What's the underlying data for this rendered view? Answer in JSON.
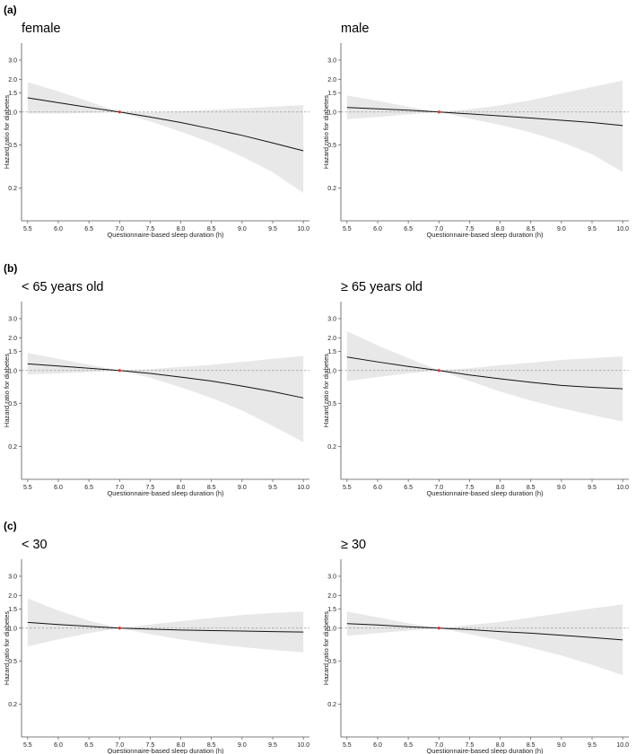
{
  "colors": {
    "band": "#e8e8e8",
    "line": "#111111",
    "ref": "#9a9a9a",
    "point": "#e03030",
    "axis": "#555555"
  },
  "chart_data": {
    "type": "line",
    "x_ticks": [
      "5.5",
      "6.0",
      "6.5",
      "7.0",
      "7.5",
      "8.0",
      "8.5",
      "9.0",
      "9.5",
      "10.0"
    ],
    "y_ticks": [
      {
        "value": 0.2,
        "label": "0.2"
      },
      {
        "value": 0.5,
        "label": "0.5"
      },
      {
        "value": 1.0,
        "label": "1.0"
      },
      {
        "value": 1.5,
        "label": "1.5"
      },
      {
        "value": 2.0,
        "label": "2.0"
      },
      {
        "value": 3.0,
        "label": "3.0"
      }
    ],
    "xlim": [
      5.4,
      10.1
    ],
    "ylim": [
      0.1,
      4.3
    ],
    "y_scale": "log",
    "reference_y": 1.0,
    "reference_x": 7.0,
    "xlabel": "Questionnaire-based sleep duration (h)",
    "ylabel": "Hazard ratio for diabetes",
    "groups": [
      {
        "label": "(a)",
        "panels": [
          {
            "title": "female",
            "x": [
              5.5,
              6.0,
              6.5,
              7.0,
              7.5,
              8.0,
              8.5,
              9.0,
              9.5,
              10.0
            ],
            "hr": [
              1.35,
              1.22,
              1.1,
              1.0,
              0.9,
              0.8,
              0.7,
              0.61,
              0.52,
              0.44
            ],
            "lower": [
              0.97,
              0.97,
              0.98,
              1.0,
              0.82,
              0.66,
              0.52,
              0.39,
              0.28,
              0.18
            ],
            "upper": [
              1.88,
              1.55,
              1.25,
              1.0,
              0.99,
              1.02,
              1.05,
              1.08,
              1.12,
              1.16
            ]
          },
          {
            "title": "male",
            "x": [
              5.5,
              6.0,
              6.5,
              7.0,
              7.5,
              8.0,
              8.5,
              9.0,
              9.5,
              10.0
            ],
            "hr": [
              1.1,
              1.07,
              1.04,
              1.0,
              0.96,
              0.92,
              0.88,
              0.84,
              0.8,
              0.75
            ],
            "lower": [
              0.86,
              0.9,
              0.95,
              1.0,
              0.87,
              0.76,
              0.65,
              0.53,
              0.41,
              0.28
            ],
            "upper": [
              1.42,
              1.27,
              1.12,
              1.0,
              1.06,
              1.15,
              1.28,
              1.48,
              1.7,
              1.95
            ]
          }
        ]
      },
      {
        "label": "(b)",
        "panels": [
          {
            "title": "< 65 years old",
            "x": [
              5.5,
              6.0,
              6.5,
              7.0,
              7.5,
              8.0,
              8.5,
              9.0,
              9.5,
              10.0
            ],
            "hr": [
              1.15,
              1.1,
              1.05,
              1.0,
              0.94,
              0.87,
              0.8,
              0.72,
              0.64,
              0.56
            ],
            "lower": [
              0.92,
              0.94,
              0.97,
              1.0,
              0.86,
              0.7,
              0.56,
              0.43,
              0.31,
              0.22
            ],
            "upper": [
              1.45,
              1.28,
              1.13,
              1.0,
              1.03,
              1.08,
              1.13,
              1.2,
              1.28,
              1.36
            ]
          },
          {
            "title": "≥ 65 years old",
            "x": [
              5.5,
              6.0,
              6.5,
              7.0,
              7.5,
              8.0,
              8.5,
              9.0,
              9.5,
              10.0
            ],
            "hr": [
              1.33,
              1.2,
              1.09,
              1.0,
              0.91,
              0.84,
              0.78,
              0.73,
              0.7,
              0.68
            ],
            "lower": [
              0.8,
              0.87,
              0.94,
              1.0,
              0.8,
              0.64,
              0.53,
              0.45,
              0.39,
              0.34
            ],
            "upper": [
              2.3,
              1.7,
              1.3,
              1.0,
              1.05,
              1.12,
              1.18,
              1.25,
              1.3,
              1.35
            ]
          }
        ]
      },
      {
        "label": "(c)",
        "panels": [
          {
            "title": "< 30",
            "x": [
              5.5,
              6.0,
              6.5,
              7.0,
              7.5,
              8.0,
              8.5,
              9.0,
              9.5,
              10.0
            ],
            "hr": [
              1.13,
              1.08,
              1.04,
              1.0,
              0.98,
              0.96,
              0.95,
              0.94,
              0.93,
              0.92
            ],
            "lower": [
              0.68,
              0.79,
              0.9,
              1.0,
              0.88,
              0.79,
              0.72,
              0.67,
              0.63,
              0.6
            ],
            "upper": [
              1.88,
              1.45,
              1.17,
              1.0,
              1.08,
              1.16,
              1.24,
              1.32,
              1.38,
              1.42
            ]
          },
          {
            "title": "≥ 30",
            "x": [
              5.5,
              6.0,
              6.5,
              7.0,
              7.5,
              8.0,
              8.5,
              9.0,
              9.5,
              10.0
            ],
            "hr": [
              1.1,
              1.07,
              1.03,
              1.0,
              0.97,
              0.93,
              0.9,
              0.86,
              0.82,
              0.78
            ],
            "lower": [
              0.85,
              0.9,
              0.95,
              1.0,
              0.88,
              0.77,
              0.66,
              0.56,
              0.46,
              0.37
            ],
            "upper": [
              1.42,
              1.26,
              1.11,
              1.0,
              1.07,
              1.14,
              1.25,
              1.38,
              1.52,
              1.65
            ]
          }
        ]
      }
    ]
  }
}
